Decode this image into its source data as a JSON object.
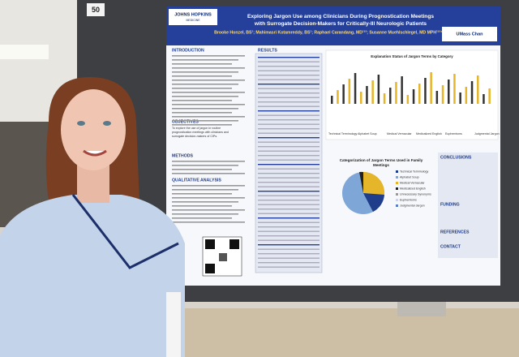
{
  "sign": {
    "number": "50"
  },
  "poster": {
    "logos": {
      "left": "JOHNS HOPKINS",
      "left_sub": "MEDICINE",
      "right": "UMass Chan"
    },
    "title": [
      "Exploring Jargon Use among Clinicians During Prognostication Meetings",
      "with Surrogate Decision-Makers for Critically-Ill Neurologic Patients"
    ],
    "authors": "Brooke Honzel, BS¹; Mahimasri Kotamreddy, BS¹; Raphael Carandang, MD¹²³; Susanne Muehlschlegel, MD MPH¹²³⁴",
    "left_sections": [
      "INTRODUCTION",
      "OBJECTIVES",
      "METHODS",
      "QUALITATIVE ANALYSIS"
    ],
    "objectives_text": [
      "To explore the use of jargon in routine",
      "prognostication meetings with clinicians and",
      "surrogate decision-makers of CIPs."
    ],
    "results_heading": "RESULTS",
    "right_sections": [
      "CONCLUSIONS",
      "FUNDING",
      "REFERENCES",
      "CONTACT"
    ],
    "bar_chart_title": "Explanation Status of Jargon Terms by Category",
    "bar_categories": [
      "Technical Terminology",
      "Alphabet Soup",
      "Medical Vernacular",
      "Medicalized English",
      "Euphemisms",
      "Judgmental Jargon"
    ],
    "pie_title": [
      "Categorization of Jargon Terms Used in Family",
      "Meetings"
    ],
    "pie_legend": [
      "Technical Terminology",
      "Alphabet Soup",
      "Medical Vernacular",
      "Medicalized English",
      "Unnecessary Synonyms",
      "Euphemisms",
      "Judgmental Jargon"
    ]
  }
}
